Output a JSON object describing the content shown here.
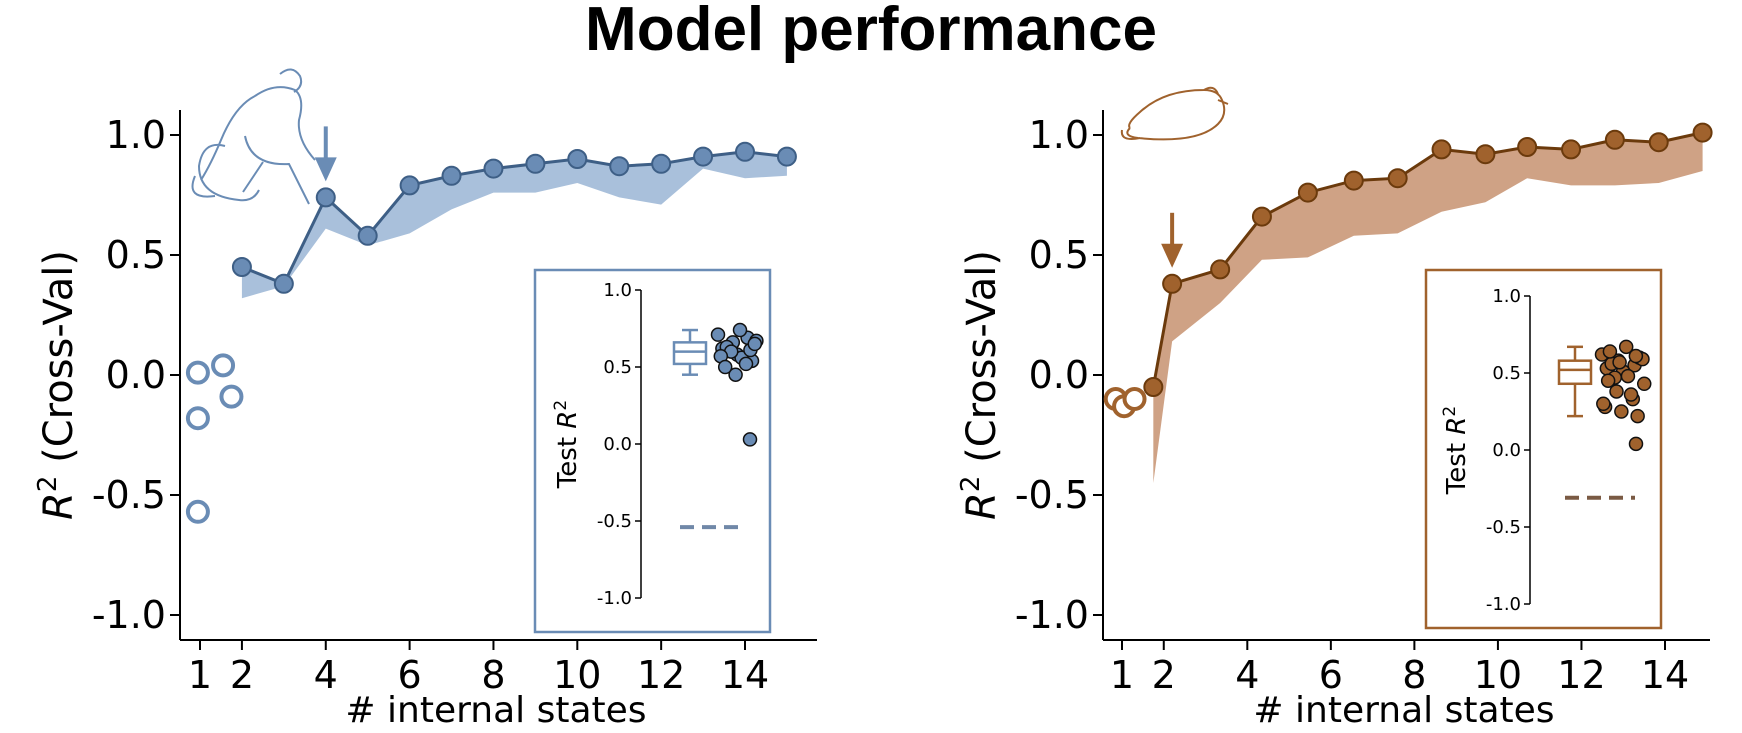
{
  "title": "Model performance",
  "chart_data": [
    {
      "type": "line",
      "panel": "monkey",
      "color": "#6a8cb5",
      "color_dark": "#3e5f86",
      "fill_color": "#a9c0db",
      "icon": "monkey-icon",
      "xlabel": "# internal states",
      "ylabel_base": "R",
      "ylabel_sup": "2",
      "ylabel_rest": " (Cross-Val)",
      "xticks": [
        1,
        2,
        4,
        6,
        8,
        10,
        12,
        14
      ],
      "yticks": [
        1.0,
        0.5,
        0.0,
        -0.5,
        -1.0
      ],
      "ytick_labels": [
        "1.0",
        "0.5",
        "0.0",
        "-0.5",
        "-1.0"
      ],
      "ylim": [
        -1.1,
        1.1
      ],
      "single_state_points": [
        {
          "x": 0.95,
          "y": 0.01
        },
        {
          "x": 1.55,
          "y": 0.04
        },
        {
          "x": 0.95,
          "y": -0.18
        },
        {
          "x": 1.75,
          "y": -0.09
        },
        {
          "x": 0.95,
          "y": -0.57
        }
      ],
      "series": [
        {
          "x": [
            2,
            3,
            4,
            5,
            6,
            7,
            8,
            9,
            10,
            11,
            12,
            13,
            14,
            15
          ],
          "values": [
            0.45,
            0.38,
            0.74,
            0.58,
            0.79,
            0.83,
            0.86,
            0.88,
            0.9,
            0.87,
            0.88,
            0.91,
            0.93,
            0.91
          ]
        }
      ],
      "band_lower": [
        0.32,
        0.37,
        0.61,
        0.54,
        0.59,
        0.69,
        0.76,
        0.76,
        0.8,
        0.74,
        0.71,
        0.86,
        0.82,
        0.83
      ],
      "arrow_x": 4,
      "inset": {
        "ylabel_base": "Test ",
        "ylabel_var": "R",
        "ylabel_sup": "2",
        "yticks": [
          1.0,
          0.5,
          0.0,
          -0.5,
          -1.0
        ],
        "ytick_labels": [
          "1.0",
          "0.5",
          "0.0",
          "-0.5",
          "-1.0"
        ],
        "box": {
          "q1": 0.52,
          "median": 0.6,
          "q3": 0.66,
          "whisker_low": 0.45,
          "whisker_high": 0.74
        },
        "points": [
          0.71,
          0.66,
          0.69,
          0.62,
          0.58,
          0.54,
          0.63,
          0.56,
          0.67,
          0.6,
          0.52,
          0.57,
          0.45,
          0.61,
          0.5,
          0.74,
          0.65,
          0.03
        ],
        "baseline": -0.54
      }
    },
    {
      "type": "line",
      "panel": "rat",
      "color": "#a0622d",
      "color_dark": "#6b3a0c",
      "fill_color": "#cfa285",
      "icon": "rat-icon",
      "xlabel": "# internal states",
      "ylabel_base": "R",
      "ylabel_sup": "2",
      "ylabel_rest": " (Cross-Val)",
      "xticks": [
        1,
        2,
        4,
        6,
        8,
        10,
        12,
        14
      ],
      "yticks": [
        1.0,
        0.5,
        0.0,
        -0.5,
        -1.0
      ],
      "ytick_labels": [
        "1.0",
        "0.5",
        "0.0",
        "-0.5",
        "-1.0"
      ],
      "ylim": [
        -1.1,
        1.1
      ],
      "single_state_points": [
        {
          "x": 0.85,
          "y": -0.1
        },
        {
          "x": 1.05,
          "y": -0.13
        },
        {
          "x": 1.3,
          "y": -0.1
        }
      ],
      "series": [
        {
          "x": [
            1.75,
            2.2,
            3.35,
            4.35,
            5.45,
            6.55,
            7.6,
            8.65,
            9.7,
            10.7,
            11.75,
            12.8,
            13.85,
            14.9
          ],
          "values": [
            -0.05,
            0.38,
            0.44,
            0.66,
            0.76,
            0.81,
            0.82,
            0.94,
            0.92,
            0.95,
            0.94,
            0.98,
            0.97,
            1.01
          ]
        }
      ],
      "band_lower": [
        -0.45,
        0.14,
        0.3,
        0.48,
        0.49,
        0.58,
        0.59,
        0.68,
        0.72,
        0.82,
        0.79,
        0.79,
        0.8,
        0.85
      ],
      "arrow_x": 2.2,
      "inset": {
        "ylabel_base": "Test ",
        "ylabel_var": "R",
        "ylabel_sup": "2",
        "yticks": [
          1.0,
          0.5,
          0.0,
          -0.5,
          -1.0
        ],
        "ytick_labels": [
          "1.0",
          "0.5",
          "0.0",
          "-0.5",
          "-1.0"
        ],
        "box": {
          "q1": 0.43,
          "median": 0.52,
          "q3": 0.58,
          "whisker_low": 0.22,
          "whisker_high": 0.67
        },
        "points": [
          0.62,
          0.58,
          0.55,
          0.53,
          0.51,
          0.6,
          0.56,
          0.48,
          0.43,
          0.38,
          0.33,
          0.28,
          0.25,
          0.22,
          0.64,
          0.67,
          0.59,
          0.47,
          0.36,
          0.3,
          0.57,
          0.61,
          0.45,
          0.04
        ],
        "baseline": -0.31
      }
    }
  ]
}
